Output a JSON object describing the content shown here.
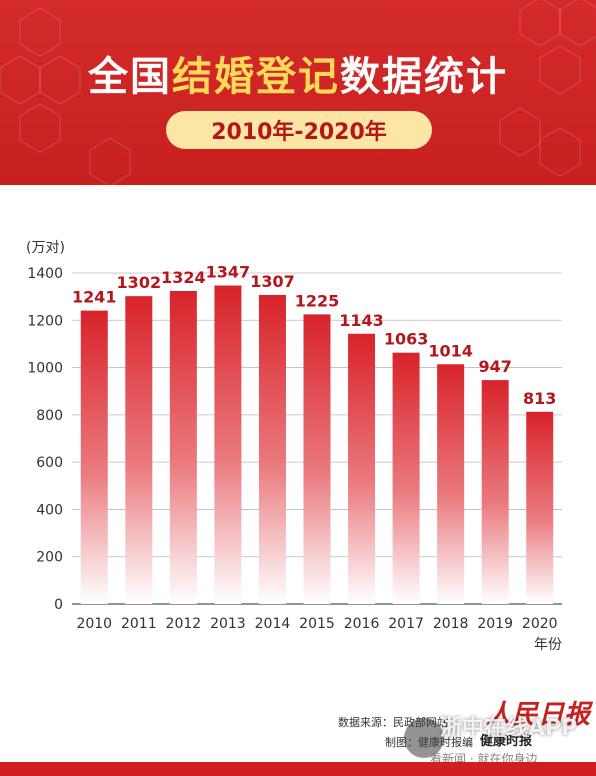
{
  "header": {
    "title_part1": "全国",
    "title_accent": "结婚登记",
    "title_part2": "数据统计",
    "period": "2010年-2020年"
  },
  "chart_data": {
    "type": "bar",
    "ylabel": "(万对)",
    "xlabel": "年份",
    "ylim": [
      0,
      1400
    ],
    "yticks": [
      0,
      200,
      400,
      600,
      800,
      1000,
      1200,
      1400
    ],
    "categories": [
      "2010",
      "2011",
      "2012",
      "2013",
      "2014",
      "2015",
      "2016",
      "2017",
      "2018",
      "2019",
      "2020"
    ],
    "values": [
      1241,
      1302,
      1324,
      1347,
      1307,
      1225,
      1143,
      1063,
      1014,
      947,
      813
    ],
    "grid": true,
    "bar_color": "#d8232a",
    "label_color": "#b5161b"
  },
  "footer": {
    "source": "数据来源：民政部网站",
    "maker": "制图：健康时报编",
    "logo": "人民日报",
    "health": "健康时报",
    "watermark": "浙中在线APP",
    "watermark_sub": "看新闻 · 就在你身边"
  },
  "colors": {
    "header_bg": "#c81f1f",
    "accent": "#ffd95a",
    "pill_bg": "#fbe6a6"
  }
}
